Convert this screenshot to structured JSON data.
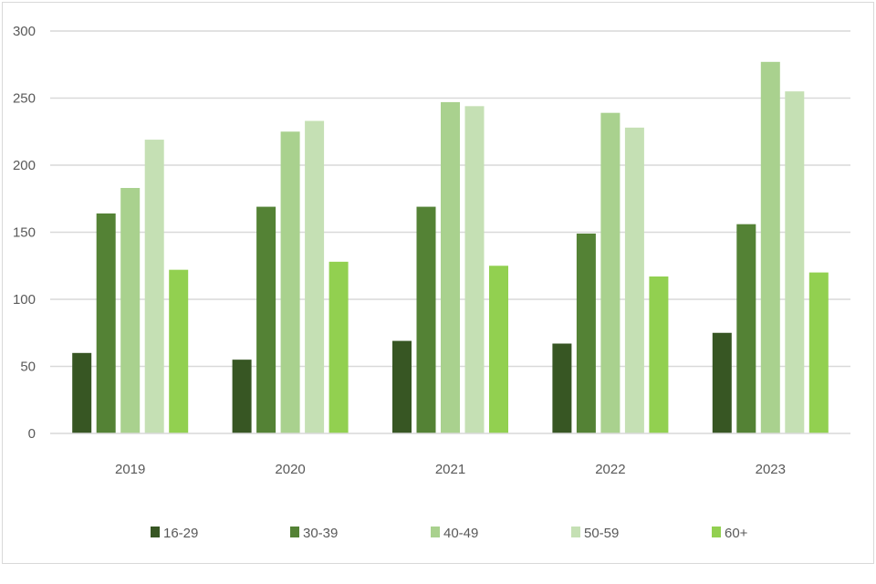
{
  "chart_data": {
    "type": "bar",
    "title": "",
    "xlabel": "",
    "ylabel": "",
    "categories": [
      "2019",
      "2020",
      "2021",
      "2022",
      "2023"
    ],
    "series": [
      {
        "name": "16-29",
        "color": "#375623",
        "values": [
          60,
          55,
          69,
          67,
          75
        ]
      },
      {
        "name": "30-39",
        "color": "#548235",
        "values": [
          164,
          169,
          169,
          149,
          156
        ]
      },
      {
        "name": "40-49",
        "color": "#a9d18e",
        "values": [
          183,
          225,
          247,
          239,
          277
        ]
      },
      {
        "name": "50-59",
        "color": "#c5e0b4",
        "values": [
          219,
          233,
          244,
          228,
          255
        ]
      },
      {
        "name": "60+",
        "color": "#92d050",
        "values": [
          122,
          128,
          125,
          117,
          120
        ]
      }
    ],
    "ylim": [
      0,
      300
    ],
    "yticks": [
      0,
      50,
      100,
      150,
      200,
      250,
      300
    ],
    "grid": true,
    "legend_position": "bottom"
  }
}
